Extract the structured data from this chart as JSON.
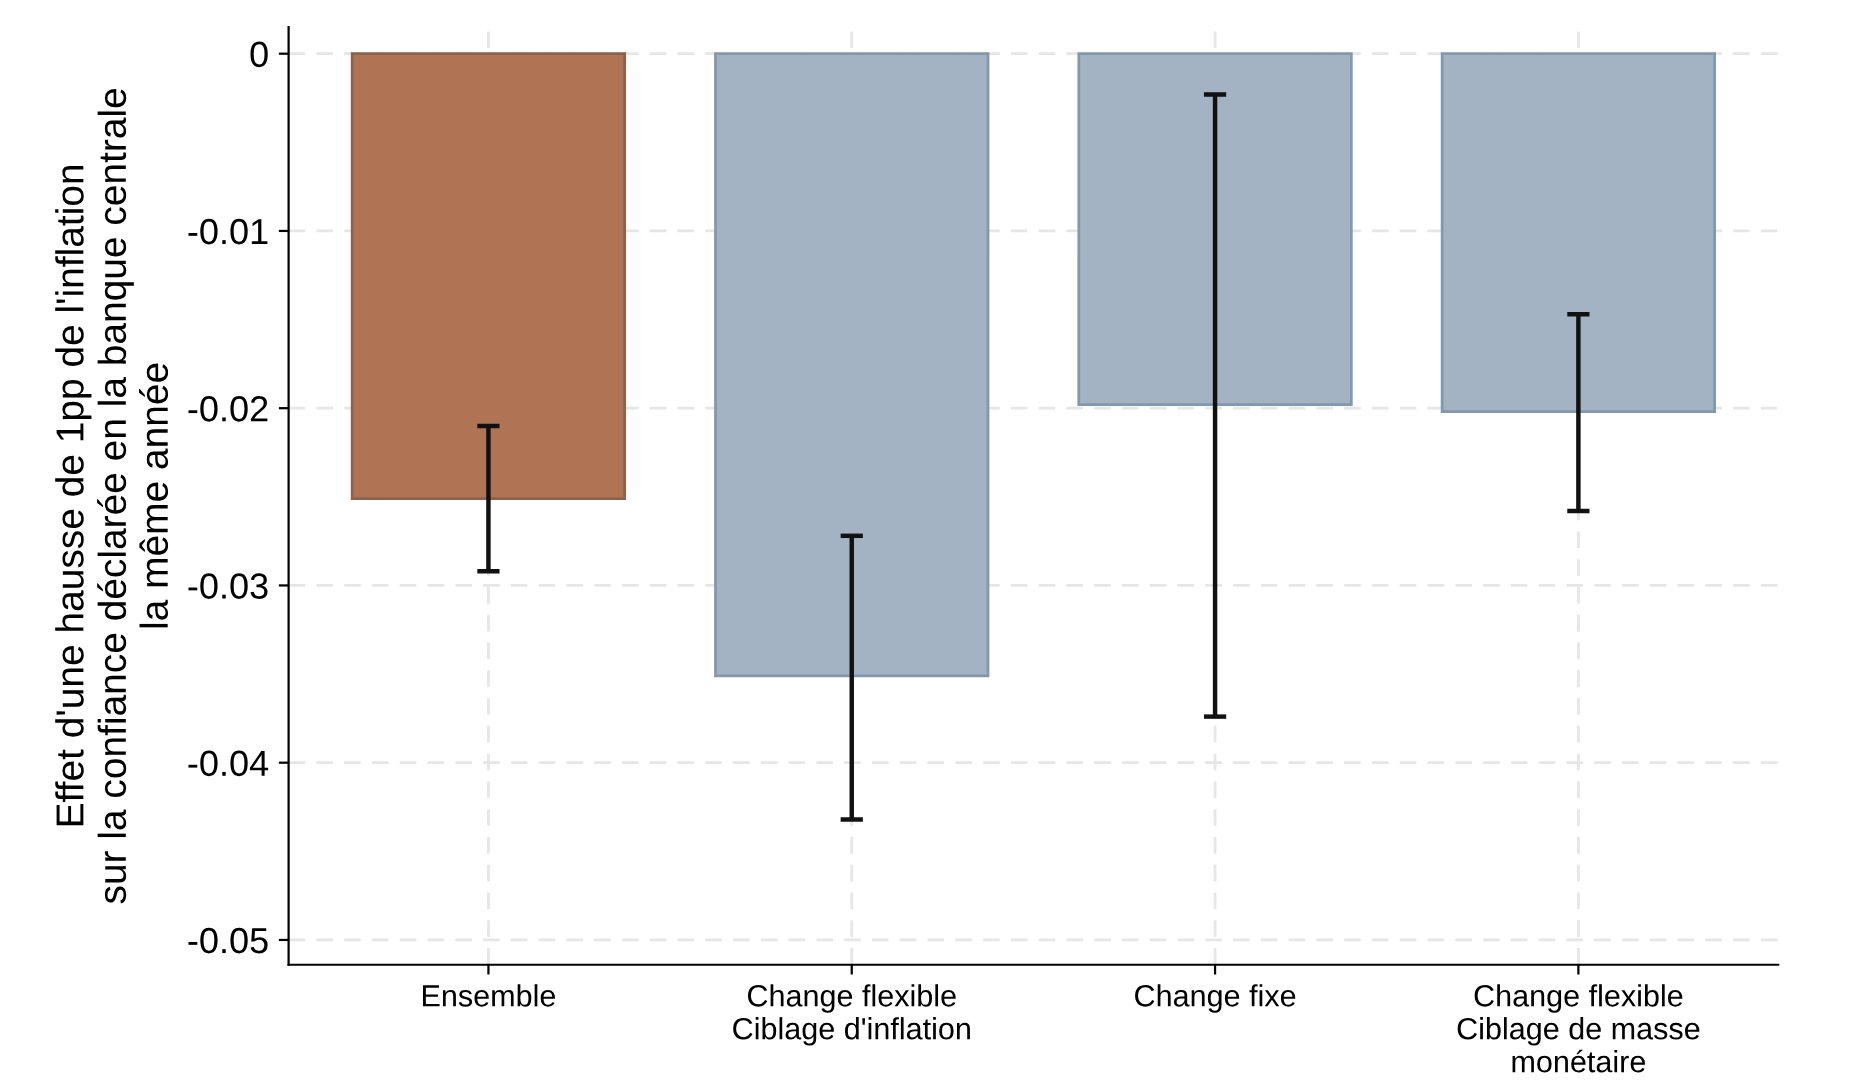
{
  "chart_data": {
    "type": "bar",
    "ylabel": "Effet d'une hausse de 1pp de l'inflation\nsur la confiance déclarée en la banque centrale\nla même année",
    "categories": [
      "Ensemble",
      "Change flexible\nCiblage d'inflation",
      "Change fixe",
      "Change flexible\nCiblage de masse\nmonétaire"
    ],
    "values": [
      -0.0251,
      -0.0351,
      -0.0198,
      -0.0202
    ],
    "colors": [
      "#b07455",
      "#a3b3c3",
      "#a3b3c3",
      "#a3b3c3"
    ],
    "errors": [
      [
        -0.0292,
        -0.021
      ],
      [
        -0.0432,
        -0.0272
      ],
      [
        -0.0374,
        -0.0023
      ],
      [
        -0.0258,
        -0.0147
      ]
    ],
    "ylim": [
      -0.0514,
      0.0015
    ],
    "yticks": [
      0,
      -0.01,
      -0.02,
      -0.03,
      -0.04,
      -0.05
    ],
    "grid": true
  }
}
